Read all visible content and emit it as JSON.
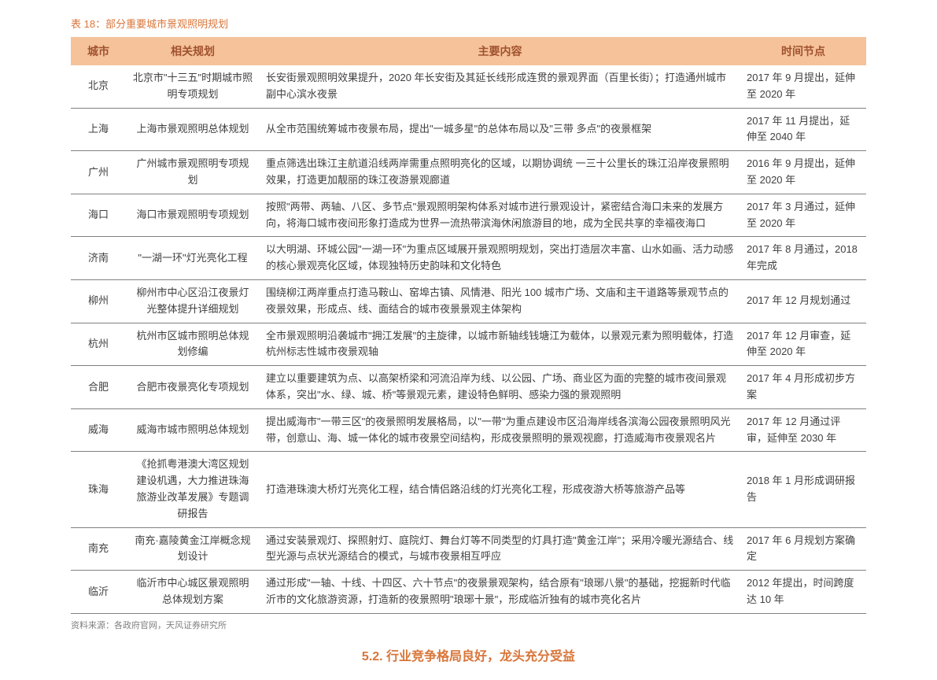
{
  "title": "表 18：部分重要城市景观照明规划",
  "columns": [
    "城市",
    "相关规划",
    "主要内容",
    "时间节点"
  ],
  "rows": [
    {
      "city": "北京",
      "plan": "北京市\"十三五\"时期城市照明专项规划",
      "content": "长安街景观照明效果提升，2020 年长安街及其延长线形成连贯的景观界面（百里长街）；打造通州城市副中心滨水夜景",
      "time": "2017 年 9 月提出，延伸至 2020 年"
    },
    {
      "city": "上海",
      "plan": "上海市景观照明总体规划",
      "content": "从全市范围统筹城市夜景布局，提出\"一城多星\"的总体布局以及\"三带 多点\"的夜景框架",
      "time": "2017 年 11 月提出，延伸至 2040 年"
    },
    {
      "city": "广州",
      "plan": "广州城市景观照明专项规划",
      "content": "重点筛选出珠江主航道沿线两岸需重点照明亮化的区域，以期协调统 一三十公里长的珠江沿岸夜景照明效果，打造更加靓丽的珠江夜游景观廊道",
      "time": "2016 年 9 月提出，延伸至 2020 年"
    },
    {
      "city": "海口",
      "plan": "海口市景观照明专项规划",
      "content": "按照\"两带、两轴、八区、多节点\"景观照明架构体系对城市进行景观设计，紧密结合海口未来的发展方向，将海口城市夜间形象打造成为世界一流热带滨海休闲旅游目的地，成为全民共享的幸福夜海口",
      "time": "2017 年 3 月通过，延伸至 2020 年"
    },
    {
      "city": "济南",
      "plan": "\"一湖一环\"灯光亮化工程",
      "content": "以大明湖、环城公园\"一湖一环\"为重点区域展开景观照明规划，突出打造层次丰富、山水如画、活力动感的核心景观亮化区域，体现独特历史韵味和文化特色",
      "time": "2017 年 8 月通过，2018 年完成"
    },
    {
      "city": "柳州",
      "plan": "柳州市中心区沿江夜景灯光整体提升详细规划",
      "content": "围绕柳江两岸重点打造马鞍山、窑埠古镇、风情港、阳光 100 城市广场、文庙和主干道路等景观节点的夜景效果，形成点、线、面结合的城市夜景景观主体架构",
      "time": "2017 年 12 月规划通过"
    },
    {
      "city": "杭州",
      "plan": "杭州市区城市照明总体规划修编",
      "content": "全市景观照明沿袭城市\"拥江发展\"的主旋律，以城市新轴线钱塘江为载体，以景观元素为照明载体，打造杭州标志性城市夜景观轴",
      "time": "2017 年 12 月审查，延伸至 2020 年"
    },
    {
      "city": "合肥",
      "plan": "合肥市夜景亮化专项规划",
      "content": "建立以重要建筑为点、以高架桥梁和河流沿岸为线、以公园、广场、商业区为面的完整的城市夜间景观体系，突出\"水、绿、城、桥\"等景观元素，建设特色鲜明、感染力强的景观照明",
      "time": "2017 年 4 月形成初步方案"
    },
    {
      "city": "威海",
      "plan": "威海市城市照明总体规划",
      "content": "提出威海市\"一带三区\"的夜景照明发展格局，以\"一带\"为重点建设市区沿海岸线各滨海公园夜景照明风光带，创意山、海、城一体化的城市夜景空间结构，形成夜景照明的景观视廊，打造威海市夜景观名片",
      "time": "2017 年 12 月通过评审，延伸至 2030 年"
    },
    {
      "city": "珠海",
      "plan": "《抢抓粤港澳大湾区规划建设机遇，大力推进珠海旅游业改革发展》专题调研报告",
      "content": "打造港珠澳大桥灯光亮化工程，结合情侣路沿线的灯光亮化工程，形成夜游大桥等旅游产品等",
      "time": "2018 年 1 月形成调研报告"
    },
    {
      "city": "南充",
      "plan": "南充·嘉陵黄金江岸概念规划设计",
      "content": "通过安装景观灯、探照射灯、庭院灯、舞台灯等不同类型的灯具打造\"黄金江岸\"；采用冷暖光源结合、线型光源与点状光源结合的模式，与城市夜景相互呼应",
      "time": "2017 年 6 月规划方案确定"
    },
    {
      "city": "临沂",
      "plan": "临沂市中心城区景观照明总体规划方案",
      "content": "通过形成\"一轴、十线、十四区、六十节点\"的夜景景观架构，结合原有\"琅琊八景\"的基础，挖掘新时代临沂市的文化旅游资源，打造新的夜景照明\"琅琊十景\"，形成临沂独有的城市亮化名片",
      "time": "2012 年提出，时间跨度达 10 年"
    }
  ],
  "source": "资料来源：各政府官网，天风证券研究所",
  "footer": "5.2. 行业竞争格局良好，龙头充分受益"
}
